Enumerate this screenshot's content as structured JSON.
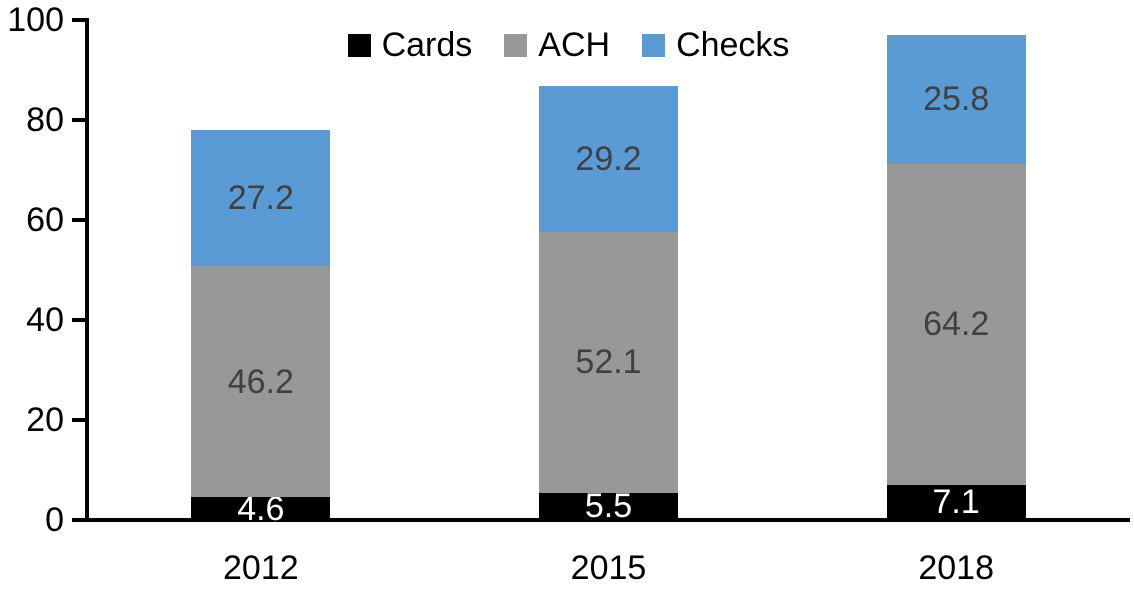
{
  "chart_data": {
    "type": "bar",
    "stacked": true,
    "title": "",
    "categories": [
      "2012",
      "2015",
      "2018"
    ],
    "series": [
      {
        "name": "Cards",
        "color": "#000000",
        "label_color": "#FFFFFF",
        "values": [
          4.6,
          5.5,
          7.1
        ]
      },
      {
        "name": "ACH",
        "color": "#989898",
        "label_color": "#404040",
        "values": [
          46.2,
          52.1,
          64.2
        ]
      },
      {
        "name": "Checks",
        "color": "#5B9BD5",
        "label_color": "#404040",
        "values": [
          27.2,
          29.2,
          25.8
        ]
      }
    ],
    "stack_totals": [
      78.0,
      86.8,
      97.1
    ],
    "ylim": [
      0,
      100
    ],
    "yticks": [
      0,
      20,
      40,
      60,
      80,
      100
    ],
    "grid": false,
    "legend_position": "top-center",
    "value_label_format": "one_decimal"
  },
  "colors": {
    "axis": "#000000",
    "background": "#FFFFFF"
  }
}
